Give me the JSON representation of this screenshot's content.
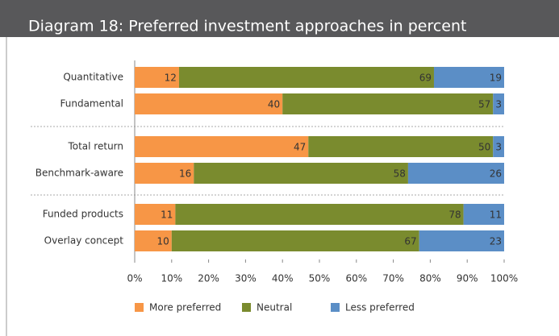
{
  "chart_data": {
    "type": "bar",
    "orientation": "horizontal",
    "stacked": true,
    "title": "Diagram 18: Preferred investment approaches in percent",
    "categories": [
      "Quantitative",
      "Fundamental",
      "Total return",
      "Benchmark-aware",
      "Funded products",
      "Overlay concept"
    ],
    "series": [
      {
        "name": "More preferred",
        "color": "#f79646",
        "values": [
          12,
          40,
          47,
          16,
          11,
          10
        ]
      },
      {
        "name": "Neutral",
        "color": "#7a8b2e",
        "values": [
          69,
          57,
          50,
          58,
          78,
          67
        ]
      },
      {
        "name": "Less preferred",
        "color": "#5b8ec6",
        "values": [
          19,
          3,
          3,
          26,
          11,
          23
        ]
      }
    ],
    "xlim": [
      0,
      100
    ],
    "xticks": [
      {
        "value": 0,
        "label": "0%"
      },
      {
        "value": 10,
        "label": "10%"
      },
      {
        "value": 20,
        "label": "20%"
      },
      {
        "value": 30,
        "label": "30%"
      },
      {
        "value": 40,
        "label": "40%"
      },
      {
        "value": 50,
        "label": "50%"
      },
      {
        "value": 60,
        "label": "60%"
      },
      {
        "value": 70,
        "label": "70%"
      },
      {
        "value": 80,
        "label": "80%"
      },
      {
        "value": 90,
        "label": "90%"
      },
      {
        "value": 100,
        "label": "100%"
      }
    ],
    "legend": "bottom"
  }
}
